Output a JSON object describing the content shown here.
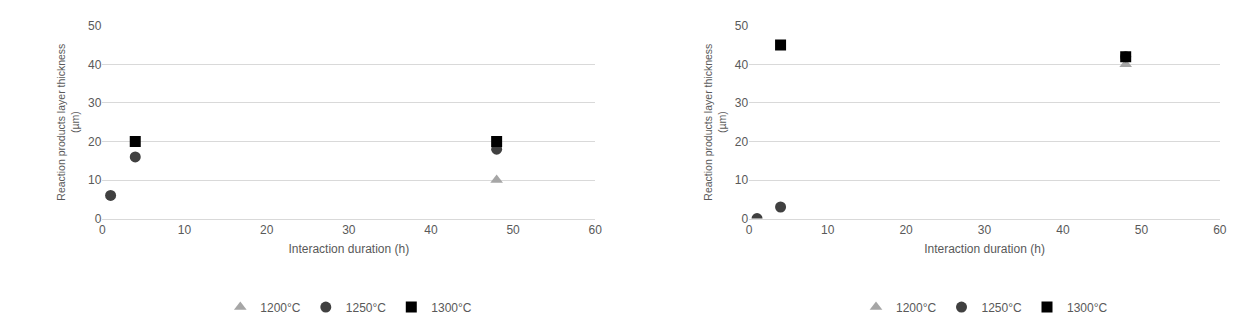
{
  "chart_data": [
    {
      "type": "scatter",
      "x_label": "Interaction duration (h)",
      "y_label": "Reaction products layer thickness (µm)",
      "xlim": [
        0,
        60
      ],
      "xticks": [
        0,
        10,
        20,
        30,
        40,
        50,
        60
      ],
      "ylim": [
        0,
        50
      ],
      "yticks": [
        0,
        10,
        20,
        30,
        40,
        50
      ],
      "grid": true,
      "legend": "bottom",
      "series": [
        {
          "name": "1200°C",
          "color": "#a6a6a6",
          "marker": "triangle",
          "x": [
            48
          ],
          "values": [
            10
          ]
        },
        {
          "name": "1250°C",
          "color": "#404040",
          "marker": "circle",
          "x": [
            1,
            4,
            48
          ],
          "values": [
            6,
            16,
            18
          ]
        },
        {
          "name": "1300°C",
          "color": "#000000",
          "marker": "square",
          "x": [
            4,
            48
          ],
          "values": [
            20,
            20
          ]
        }
      ]
    },
    {
      "type": "scatter",
      "x_label": "Interaction duration (h)",
      "y_label": "Reaction products layer thickness (µm)",
      "xlim": [
        0,
        60
      ],
      "xticks": [
        0,
        10,
        20,
        30,
        40,
        50,
        60
      ],
      "ylim": [
        0,
        50
      ],
      "yticks": [
        0,
        10,
        20,
        30,
        40,
        50
      ],
      "grid": true,
      "legend": "bottom",
      "series": [
        {
          "name": "1200°C",
          "color": "#a6a6a6",
          "marker": "triangle",
          "x": [
            48
          ],
          "values": [
            40
          ]
        },
        {
          "name": "1250°C",
          "color": "#404040",
          "marker": "circle",
          "x": [
            1,
            4,
            48
          ],
          "values": [
            0,
            3,
            42
          ]
        },
        {
          "name": "1300°C",
          "color": "#000000",
          "marker": "square",
          "x": [
            4,
            48
          ],
          "values": [
            45,
            42
          ]
        }
      ]
    }
  ]
}
